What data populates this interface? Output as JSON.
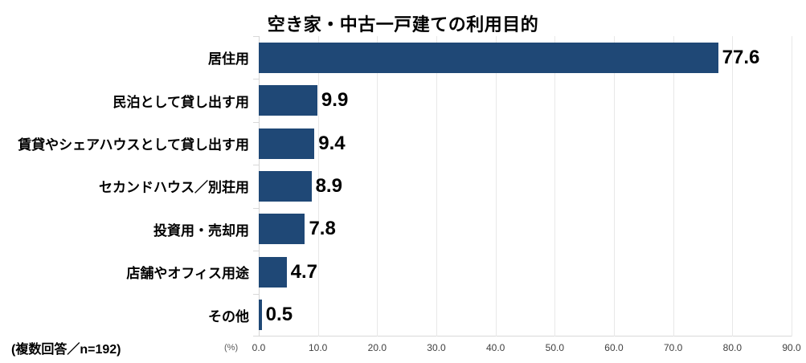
{
  "chart": {
    "title": "空き家・中古一戸建ての利用目的",
    "footnote": "(複数回答／n=192)",
    "unit_label": "(%)"
  },
  "chart_data": {
    "type": "bar",
    "orientation": "horizontal",
    "title": "空き家・中古一戸建ての利用目的",
    "categories": [
      "居住用",
      "民泊として貸し出す用",
      "賃貸やシェアハウスとして貸し出す用",
      "セカンドハウス／別荘用",
      "投資用・売却用",
      "店舗やオフィス用途",
      "その他"
    ],
    "values": [
      77.6,
      9.9,
      9.4,
      8.9,
      7.8,
      4.7,
      0.5
    ],
    "xlabel": "(%)",
    "xlim": [
      0,
      90
    ],
    "xticks": [
      "0.0",
      "10.0",
      "20.0",
      "30.0",
      "40.0",
      "50.0",
      "60.0",
      "70.0",
      "80.0",
      "90.0"
    ],
    "grid": true,
    "legend": "none",
    "note": "(複数回答／n=192)",
    "colors": {
      "bar": "#1f4876",
      "gridline": "#e8e8e8",
      "axis_line": "#d9d9d9",
      "tick_label": "#404040",
      "value_label": "#000000"
    }
  }
}
